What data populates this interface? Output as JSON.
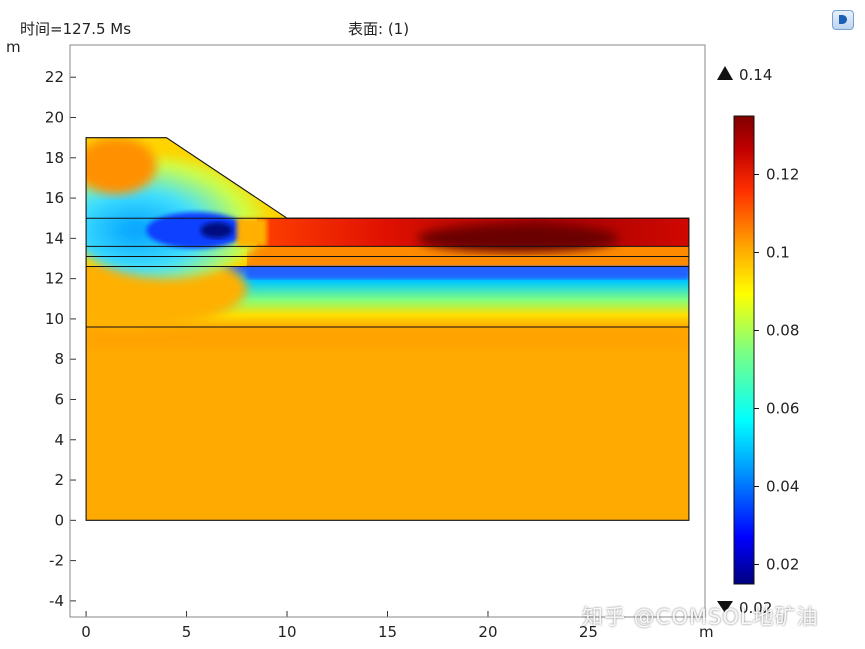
{
  "header": {
    "time_label": "时间=127.5 Ms",
    "surface_label": "表面: (1)"
  },
  "watermark": "知乎 @COMSOL地矿油",
  "chart_data": {
    "type": "heatmap",
    "title": "表面: (1)",
    "xlabel": "m",
    "ylabel": "m",
    "xlim": [
      -0.8,
      30.8
    ],
    "ylim": [
      -4.8,
      23.6
    ],
    "x_ticks": [
      "0",
      "5",
      "10",
      "15",
      "20",
      "25"
    ],
    "x_tick_values": [
      0,
      5,
      10,
      15,
      20,
      25
    ],
    "y_ticks": [
      "22",
      "20",
      "18",
      "16",
      "14",
      "12",
      "10",
      "8",
      "6",
      "4",
      "2",
      "0",
      "-2",
      "-4"
    ],
    "y_tick_values": [
      22,
      20,
      18,
      16,
      14,
      12,
      10,
      8,
      6,
      4,
      2,
      0,
      -2,
      -4
    ],
    "colorbar": {
      "max_label": "0.14",
      "min_label": "0.02",
      "ticks": [
        "0.12",
        "0.1",
        "0.08",
        "0.06",
        "0.04",
        "0.02"
      ],
      "tick_values": [
        0.12,
        0.1,
        0.08,
        0.06,
        0.04,
        0.02
      ],
      "range": [
        0.015,
        0.135
      ],
      "colormap": [
        "#00007f",
        "#0000ff",
        "#00a0ff",
        "#00ffff",
        "#7fff7f",
        "#ffff00",
        "#ffa500",
        "#ff3000",
        "#c00000",
        "#7f0000"
      ]
    },
    "geometry": {
      "slope_top": [
        [
          0,
          19
        ],
        [
          4,
          19
        ],
        [
          10,
          15
        ]
      ],
      "domain_right": 30,
      "layer_boundaries_y": [
        15,
        13.6,
        13.1,
        12.6,
        9.6,
        0
      ]
    },
    "regions": [
      {
        "name": "slope top",
        "x": [
          0,
          10
        ],
        "y": [
          15,
          19
        ],
        "value": 0.09
      },
      {
        "name": "red band",
        "x": [
          8,
          30
        ],
        "y": [
          13.6,
          15
        ],
        "value": 0.125
      },
      {
        "name": "thin layer",
        "x": [
          0,
          30
        ],
        "y": [
          12.6,
          13.6
        ],
        "value": 0.11
      },
      {
        "name": "low band",
        "x": [
          0,
          30
        ],
        "y": [
          11,
          12.6
        ],
        "value": 0.06
      },
      {
        "name": "transition",
        "x": [
          0,
          30
        ],
        "y": [
          9.6,
          11
        ],
        "value": 0.09
      },
      {
        "name": "base",
        "x": [
          0,
          30
        ],
        "y": [
          0,
          9.6
        ],
        "value": 0.105
      }
    ]
  }
}
